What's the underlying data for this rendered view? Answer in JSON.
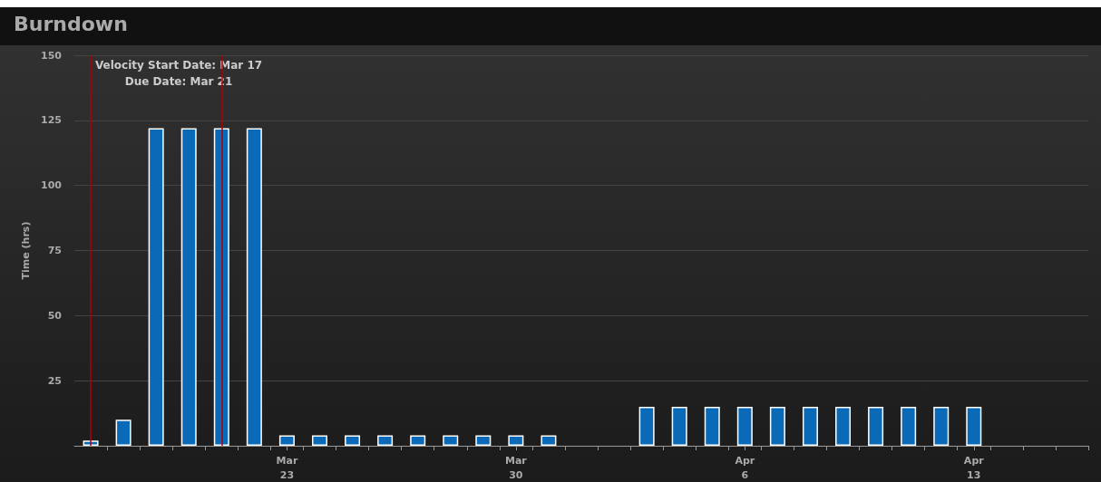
{
  "chart_data": {
    "type": "bar",
    "title": "Burndown",
    "ylabel": "Time (hrs)",
    "x": [
      "--03-17",
      "--03-18",
      "--03-19",
      "--03-20",
      "--03-21",
      "--03-22",
      "--03-23",
      "--03-24",
      "--03-25",
      "--03-26",
      "--03-27",
      "--03-28",
      "--03-29",
      "--03-30",
      "--03-31",
      "--04-03",
      "--04-04",
      "--04-05",
      "--04-06",
      "--04-07",
      "--04-08",
      "--04-09",
      "--04-10",
      "--04-11",
      "--04-12",
      "--04-13"
    ],
    "values": [
      2,
      10,
      122,
      122,
      122,
      122,
      4,
      4,
      4,
      4,
      4,
      4,
      4,
      4,
      4,
      15,
      15,
      15,
      15,
      15,
      15,
      15,
      15,
      15,
      15,
      15
    ],
    "color": "#0a6ab8",
    "xlim": [
      "--03-16T12:00",
      "--04-16T12:00"
    ],
    "xticks": [
      {
        "value": "--03-17T12:00",
        "label": null
      },
      {
        "value": "--03-18T12:00",
        "label": null
      },
      {
        "value": "--03-19T12:00",
        "label": null
      },
      {
        "value": "--03-20T12:00",
        "label": null
      },
      {
        "value": "--03-21T12:00",
        "label": null
      },
      {
        "value": "--03-22T12:00",
        "label": null
      },
      {
        "value": "--03-23",
        "label": "Mar 23"
      },
      {
        "value": "--03-23T12:00",
        "label": null
      },
      {
        "value": "--03-24T12:00",
        "label": null
      },
      {
        "value": "--03-25T12:00",
        "label": null
      },
      {
        "value": "--03-26T12:00",
        "label": null
      },
      {
        "value": "--03-27T12:00",
        "label": null
      },
      {
        "value": "--03-28T12:00",
        "label": null
      },
      {
        "value": "--03-29T12:00",
        "label": null
      },
      {
        "value": "--03-30",
        "label": "Mar 30"
      },
      {
        "value": "--03-30T12:00",
        "label": null
      },
      {
        "value": "--03-31T12:00",
        "label": null
      },
      {
        "value": "--04-01T12:00",
        "label": null
      },
      {
        "value": "--04-02T12:00",
        "label": null
      },
      {
        "value": "--04-03T12:00",
        "label": null
      },
      {
        "value": "--04-04T12:00",
        "label": null
      },
      {
        "value": "--04-05T12:00",
        "label": null
      },
      {
        "value": "--04-06",
        "label": "Apr 6"
      },
      {
        "value": "--04-06T12:00",
        "label": null
      },
      {
        "value": "--04-07T12:00",
        "label": null
      },
      {
        "value": "--04-08T12:00",
        "label": null
      },
      {
        "value": "--04-09T12:00",
        "label": null
      },
      {
        "value": "--04-10T12:00",
        "label": null
      },
      {
        "value": "--04-11T12:00",
        "label": null
      },
      {
        "value": "--04-12T12:00",
        "label": null
      },
      {
        "value": "--04-13",
        "label": "Apr 13"
      },
      {
        "value": "--04-13T12:00",
        "label": null
      },
      {
        "value": "--04-14T12:00",
        "label": null
      },
      {
        "value": "--04-15T12:00",
        "label": null
      },
      {
        "value": "--04-16T12:00",
        "label": null
      }
    ],
    "ylim": [
      0,
      150
    ],
    "yticks": [
      {
        "value": 0,
        "label": null
      },
      25,
      50,
      75,
      100,
      125,
      150
    ],
    "grid": "y",
    "ref_lines": [
      {
        "axis": "x",
        "value": "--03-17",
        "label": "Velocity Start Date: Mar 17",
        "color": "#b00000"
      },
      {
        "axis": "x",
        "value": "--03-21",
        "label": "Due Date: Mar 21",
        "color": "#b00000"
      }
    ]
  }
}
